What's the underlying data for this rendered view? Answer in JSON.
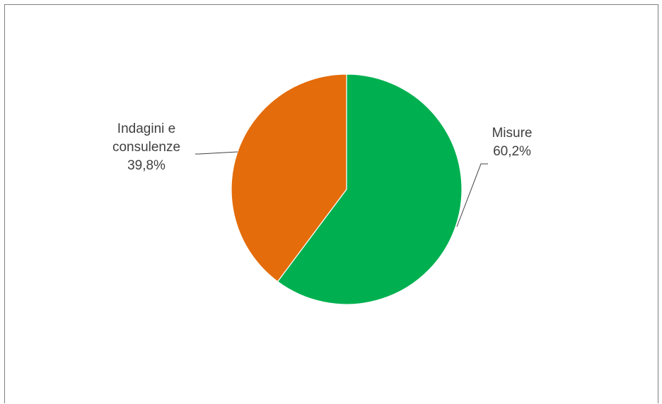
{
  "chart_data": {
    "type": "pie",
    "title": "",
    "slices": [
      {
        "name": "Misure",
        "label_lines": [
          "Misure"
        ],
        "value": 60.2,
        "value_label": "60,2%",
        "color": "#00B050"
      },
      {
        "name": "Indagini e consulenze",
        "label_lines": [
          "Indagini e",
          "consulenze"
        ],
        "value": 39.8,
        "value_label": "39,8%",
        "color": "#E46C0A"
      }
    ],
    "start_angle_deg": 0,
    "direction": "clockwise",
    "legend": "none",
    "data_labels": "outside-with-leader-lines"
  }
}
